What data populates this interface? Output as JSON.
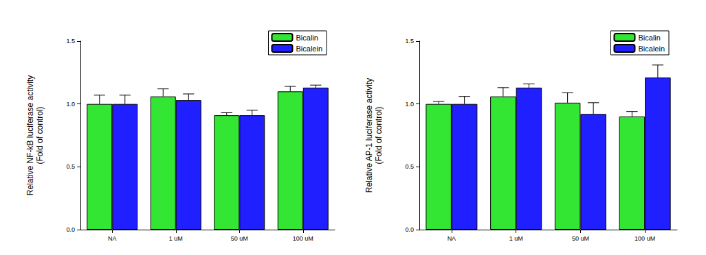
{
  "chart_data": [
    {
      "type": "bar",
      "y_label": "Relative NF-kB luciferase activity\n(Fold of control)",
      "categories": [
        "NA",
        "1 uM",
        "50 uM",
        "100 uM"
      ],
      "series": [
        {
          "name": "Bicalin",
          "color": "#33e633",
          "values": [
            1.0,
            1.06,
            0.91,
            1.1
          ],
          "errors": [
            0.07,
            0.06,
            0.02,
            0.04
          ]
        },
        {
          "name": "Bicalein",
          "color": "#1f1fff",
          "values": [
            1.0,
            1.03,
            0.91,
            1.13
          ],
          "errors": [
            0.07,
            0.05,
            0.04,
            0.02
          ]
        }
      ],
      "ylim": [
        0,
        1.5
      ],
      "yticks": [
        {
          "value": 0,
          "label": "0.0"
        },
        {
          "value": 0.5,
          "label": "0.5"
        },
        {
          "value": 1,
          "label": "1.0"
        },
        {
          "value": 1.5,
          "label": "1.5"
        }
      ],
      "legend": "upper right"
    },
    {
      "type": "bar",
      "y_label": "Relative AP-1 luciferase activity\n(Fold of control)",
      "categories": [
        "NA",
        "1 uM",
        "50 uM",
        "100 uM"
      ],
      "series": [
        {
          "name": "Bicalin",
          "color": "#33e633",
          "values": [
            1.0,
            1.06,
            1.01,
            0.9
          ],
          "errors": [
            0.02,
            0.07,
            0.08,
            0.04
          ]
        },
        {
          "name": "Bicalein",
          "color": "#1f1fff",
          "values": [
            1.0,
            1.13,
            0.92,
            1.21
          ],
          "errors": [
            0.06,
            0.03,
            0.09,
            0.1
          ]
        }
      ],
      "ylim": [
        0,
        1.5
      ],
      "yticks": [
        {
          "value": 0,
          "label": "0.0"
        },
        {
          "value": 0.5,
          "label": "0.5"
        },
        {
          "value": 1,
          "label": "1.0"
        },
        {
          "value": 1.5,
          "label": "1.5"
        }
      ],
      "legend": "upper right"
    }
  ]
}
